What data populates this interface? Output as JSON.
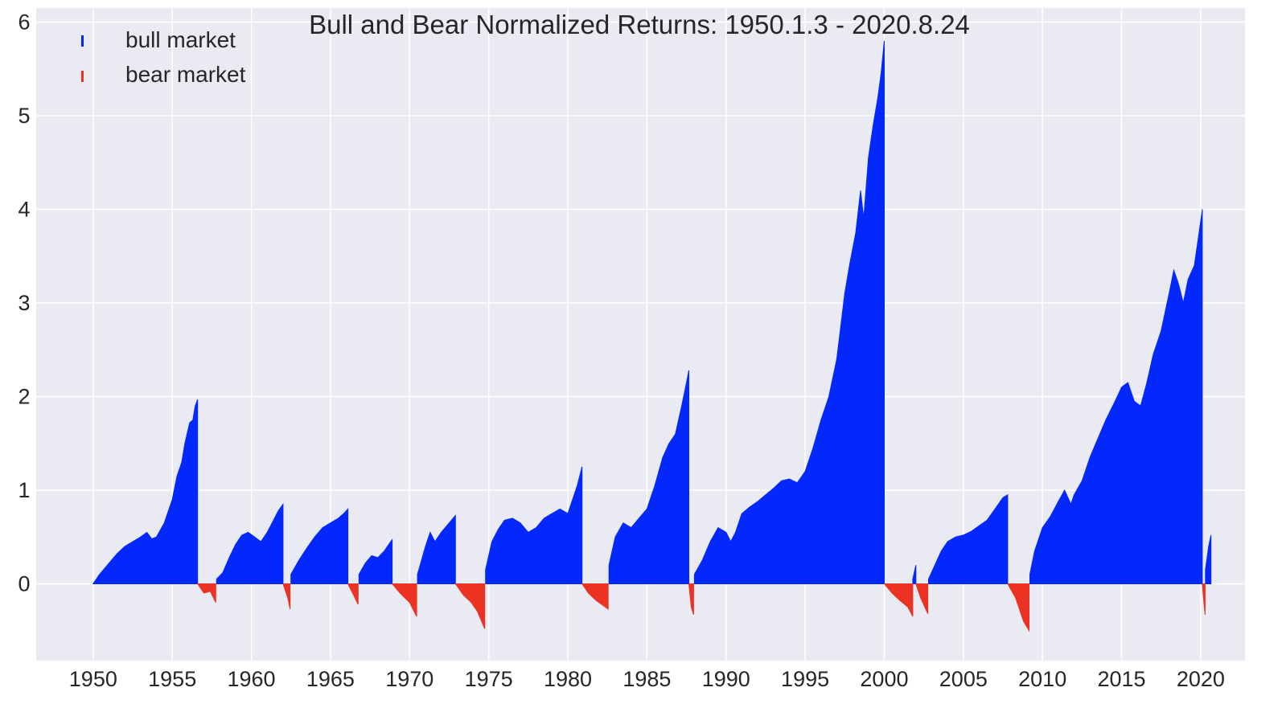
{
  "chart_data": {
    "type": "area",
    "title": "Bull and Bear Normalized Returns: 1950.1.3 - 2020.8.24",
    "xlabel": "",
    "ylabel": "",
    "xlim": [
      1946.4,
      2022.8
    ],
    "ylim": [
      -0.82,
      6.15
    ],
    "x_ticks": [
      1950,
      1955,
      1960,
      1965,
      1970,
      1975,
      1980,
      1985,
      1990,
      1995,
      2000,
      2005,
      2010,
      2015,
      2020
    ],
    "x_tick_labels": [
      "1950",
      "1955",
      "1960",
      "1965",
      "1970",
      "1975",
      "1980",
      "1985",
      "1990",
      "1995",
      "2000",
      "2005",
      "2010",
      "2015",
      "2020"
    ],
    "y_ticks": [
      0,
      1,
      2,
      3,
      4,
      5,
      6
    ],
    "y_tick_labels": [
      "0",
      "1",
      "2",
      "3",
      "4",
      "5",
      "6"
    ],
    "grid": true,
    "legend_position": "top-left",
    "colors": {
      "bull": "#0328fc",
      "bear": "#ec3223",
      "background": "#eaeaf2",
      "grid": "#ffffff",
      "text": "#262626"
    },
    "series": [
      {
        "name": "bull market",
        "color": "#0328fc",
        "segments": [
          {
            "points": [
              [
                1950.0,
                0.0
              ],
              [
                1950.4,
                0.1
              ],
              [
                1951.0,
                0.22
              ],
              [
                1951.5,
                0.32
              ],
              [
                1952.0,
                0.4
              ],
              [
                1952.5,
                0.45
              ],
              [
                1953.0,
                0.5
              ],
              [
                1953.4,
                0.55
              ],
              [
                1953.7,
                0.48
              ],
              [
                1954.0,
                0.5
              ],
              [
                1954.5,
                0.65
              ],
              [
                1955.0,
                0.9
              ],
              [
                1955.3,
                1.15
              ],
              [
                1955.6,
                1.3
              ],
              [
                1955.8,
                1.5
              ],
              [
                1956.1,
                1.72
              ],
              [
                1956.3,
                1.75
              ],
              [
                1956.45,
                1.9
              ],
              [
                1956.6,
                1.97
              ]
            ]
          },
          {
            "points": [
              [
                1957.8,
                0.05
              ],
              [
                1958.2,
                0.12
              ],
              [
                1958.6,
                0.28
              ],
              [
                1959.0,
                0.42
              ],
              [
                1959.4,
                0.52
              ],
              [
                1959.8,
                0.55
              ],
              [
                1960.2,
                0.5
              ],
              [
                1960.6,
                0.45
              ],
              [
                1961.0,
                0.55
              ],
              [
                1961.4,
                0.68
              ],
              [
                1961.7,
                0.78
              ],
              [
                1962.0,
                0.85
              ]
            ]
          },
          {
            "points": [
              [
                1962.5,
                0.1
              ],
              [
                1963.0,
                0.25
              ],
              [
                1963.5,
                0.38
              ],
              [
                1964.0,
                0.5
              ],
              [
                1964.5,
                0.6
              ],
              [
                1965.0,
                0.65
              ],
              [
                1965.5,
                0.7
              ],
              [
                1965.9,
                0.76
              ],
              [
                1966.1,
                0.8
              ]
            ]
          },
          {
            "points": [
              [
                1966.8,
                0.1
              ],
              [
                1967.2,
                0.22
              ],
              [
                1967.6,
                0.3
              ],
              [
                1968.0,
                0.28
              ],
              [
                1968.4,
                0.35
              ],
              [
                1968.8,
                0.45
              ],
              [
                1968.9,
                0.47
              ]
            ]
          },
          {
            "points": [
              [
                1970.5,
                0.1
              ],
              [
                1971.0,
                0.4
              ],
              [
                1971.3,
                0.55
              ],
              [
                1971.6,
                0.45
              ],
              [
                1972.0,
                0.55
              ],
              [
                1972.5,
                0.65
              ],
              [
                1972.9,
                0.73
              ]
            ]
          },
          {
            "points": [
              [
                1974.8,
                0.15
              ],
              [
                1975.2,
                0.45
              ],
              [
                1975.6,
                0.58
              ],
              [
                1976.0,
                0.68
              ],
              [
                1976.5,
                0.7
              ],
              [
                1977.0,
                0.65
              ],
              [
                1977.5,
                0.55
              ],
              [
                1978.0,
                0.6
              ],
              [
                1978.5,
                0.7
              ],
              [
                1979.0,
                0.75
              ],
              [
                1979.5,
                0.8
              ],
              [
                1980.0,
                0.75
              ],
              [
                1980.3,
                0.9
              ],
              [
                1980.6,
                1.05
              ],
              [
                1980.9,
                1.25
              ]
            ]
          },
          {
            "points": [
              [
                1982.6,
                0.2
              ],
              [
                1983.0,
                0.5
              ],
              [
                1983.5,
                0.65
              ],
              [
                1984.0,
                0.6
              ],
              [
                1984.5,
                0.7
              ],
              [
                1985.0,
                0.8
              ],
              [
                1985.5,
                1.05
              ],
              [
                1986.0,
                1.35
              ],
              [
                1986.4,
                1.5
              ],
              [
                1986.8,
                1.6
              ],
              [
                1987.2,
                1.9
              ],
              [
                1987.5,
                2.15
              ],
              [
                1987.65,
                2.28
              ]
            ]
          },
          {
            "points": [
              [
                1988.0,
                0.1
              ],
              [
                1988.5,
                0.25
              ],
              [
                1989.0,
                0.45
              ],
              [
                1989.5,
                0.6
              ],
              [
                1990.0,
                0.55
              ],
              [
                1990.3,
                0.45
              ],
              [
                1990.6,
                0.55
              ],
              [
                1991.0,
                0.75
              ],
              [
                1991.5,
                0.82
              ],
              [
                1992.0,
                0.88
              ],
              [
                1992.5,
                0.95
              ],
              [
                1993.0,
                1.02
              ],
              [
                1993.5,
                1.1
              ],
              [
                1994.0,
                1.12
              ],
              [
                1994.5,
                1.08
              ],
              [
                1995.0,
                1.2
              ],
              [
                1995.5,
                1.45
              ],
              [
                1996.0,
                1.75
              ],
              [
                1996.5,
                2.0
              ],
              [
                1997.0,
                2.4
              ],
              [
                1997.5,
                3.1
              ],
              [
                1997.8,
                3.4
              ],
              [
                1998.2,
                3.75
              ],
              [
                1998.5,
                4.2
              ],
              [
                1998.7,
                3.9
              ],
              [
                1999.0,
                4.55
              ],
              [
                1999.3,
                4.9
              ],
              [
                1999.6,
                5.2
              ],
              [
                1999.8,
                5.45
              ],
              [
                2000.0,
                5.8
              ]
            ]
          },
          {
            "points": [
              [
                2001.8,
                0.05
              ],
              [
                2002.0,
                0.2
              ]
            ]
          },
          {
            "points": [
              [
                2002.8,
                0.05
              ],
              [
                2003.2,
                0.2
              ],
              [
                2003.6,
                0.35
              ],
              [
                2004.0,
                0.45
              ],
              [
                2004.5,
                0.5
              ],
              [
                2005.0,
                0.52
              ],
              [
                2005.5,
                0.56
              ],
              [
                2006.0,
                0.62
              ],
              [
                2006.5,
                0.68
              ],
              [
                2007.0,
                0.8
              ],
              [
                2007.5,
                0.92
              ],
              [
                2007.8,
                0.95
              ]
            ]
          },
          {
            "points": [
              [
                2009.2,
                0.1
              ],
              [
                2009.5,
                0.35
              ],
              [
                2010.0,
                0.6
              ],
              [
                2010.5,
                0.72
              ],
              [
                2011.0,
                0.88
              ],
              [
                2011.4,
                1.0
              ],
              [
                2011.8,
                0.85
              ],
              [
                2012.0,
                0.95
              ],
              [
                2012.5,
                1.1
              ],
              [
                2013.0,
                1.35
              ],
              [
                2013.5,
                1.55
              ],
              [
                2014.0,
                1.75
              ],
              [
                2014.5,
                1.92
              ],
              [
                2015.0,
                2.1
              ],
              [
                2015.4,
                2.15
              ],
              [
                2015.8,
                1.95
              ],
              [
                2016.2,
                1.9
              ],
              [
                2016.6,
                2.15
              ],
              [
                2017.0,
                2.45
              ],
              [
                2017.5,
                2.7
              ],
              [
                2018.0,
                3.1
              ],
              [
                2018.3,
                3.35
              ],
              [
                2018.6,
                3.2
              ],
              [
                2018.9,
                3.0
              ],
              [
                2019.2,
                3.25
              ],
              [
                2019.6,
                3.4
              ],
              [
                2019.9,
                3.75
              ],
              [
                2020.1,
                4.0
              ]
            ]
          },
          {
            "points": [
              [
                2020.3,
                0.15
              ],
              [
                2020.5,
                0.4
              ],
              [
                2020.65,
                0.52
              ]
            ]
          }
        ]
      },
      {
        "name": "bear market",
        "color": "#ec3223",
        "segments": [
          {
            "points": [
              [
                1956.6,
                0.0
              ],
              [
                1957.0,
                -0.1
              ],
              [
                1957.4,
                -0.08
              ],
              [
                1957.75,
                -0.2
              ]
            ]
          },
          {
            "points": [
              [
                1962.0,
                0.0
              ],
              [
                1962.3,
                -0.15
              ],
              [
                1962.45,
                -0.27
              ]
            ]
          },
          {
            "points": [
              [
                1966.1,
                0.0
              ],
              [
                1966.4,
                -0.1
              ],
              [
                1966.75,
                -0.22
              ]
            ]
          },
          {
            "points": [
              [
                1968.9,
                0.0
              ],
              [
                1969.4,
                -0.1
              ],
              [
                1970.0,
                -0.2
              ],
              [
                1970.45,
                -0.35
              ]
            ]
          },
          {
            "points": [
              [
                1972.9,
                0.0
              ],
              [
                1973.4,
                -0.12
              ],
              [
                1973.9,
                -0.2
              ],
              [
                1974.3,
                -0.3
              ],
              [
                1974.75,
                -0.48
              ]
            ]
          },
          {
            "points": [
              [
                1980.9,
                0.0
              ],
              [
                1981.3,
                -0.1
              ],
              [
                1981.8,
                -0.18
              ],
              [
                1982.55,
                -0.27
              ]
            ]
          },
          {
            "points": [
              [
                1987.65,
                0.0
              ],
              [
                1987.8,
                -0.25
              ],
              [
                1987.95,
                -0.33
              ]
            ]
          },
          {
            "points": [
              [
                2000.0,
                0.0
              ],
              [
                2000.5,
                -0.1
              ],
              [
                2001.0,
                -0.18
              ],
              [
                2001.5,
                -0.25
              ],
              [
                2001.8,
                -0.35
              ]
            ]
          },
          {
            "points": [
              [
                2002.0,
                0.0
              ],
              [
                2002.3,
                -0.15
              ],
              [
                2002.75,
                -0.32
              ]
            ]
          },
          {
            "points": [
              [
                2007.8,
                0.0
              ],
              [
                2008.3,
                -0.15
              ],
              [
                2008.8,
                -0.4
              ],
              [
                2009.15,
                -0.5
              ]
            ]
          },
          {
            "points": [
              [
                2020.1,
                0.0
              ],
              [
                2020.2,
                -0.2
              ],
              [
                2020.28,
                -0.33
              ]
            ]
          }
        ]
      }
    ]
  }
}
